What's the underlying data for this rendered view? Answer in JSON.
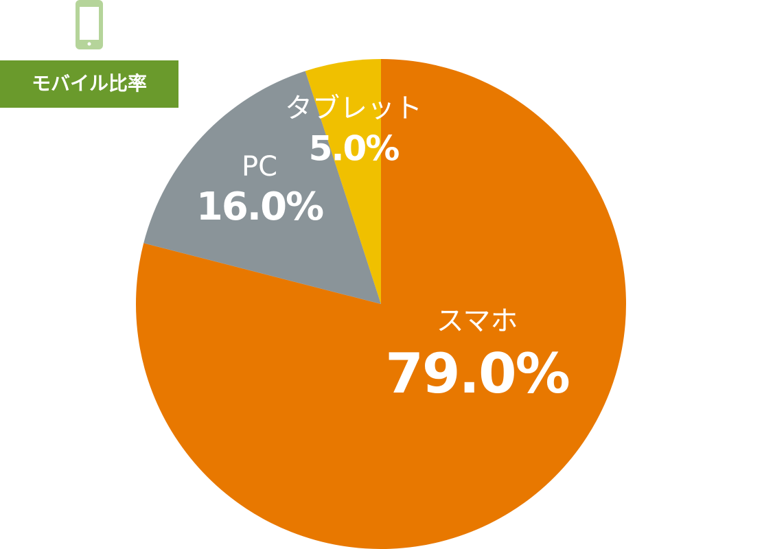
{
  "chart_data": {
    "type": "pie",
    "title": "モバイル比率",
    "categories": [
      "スマホ",
      "PC",
      "タブレット"
    ],
    "values": [
      79.0,
      16.0,
      5.0
    ],
    "value_labels": [
      "79.0%",
      "16.0%",
      "5.0%"
    ],
    "colors": [
      "#e87800",
      "#8a9499",
      "#f0c000"
    ]
  }
}
